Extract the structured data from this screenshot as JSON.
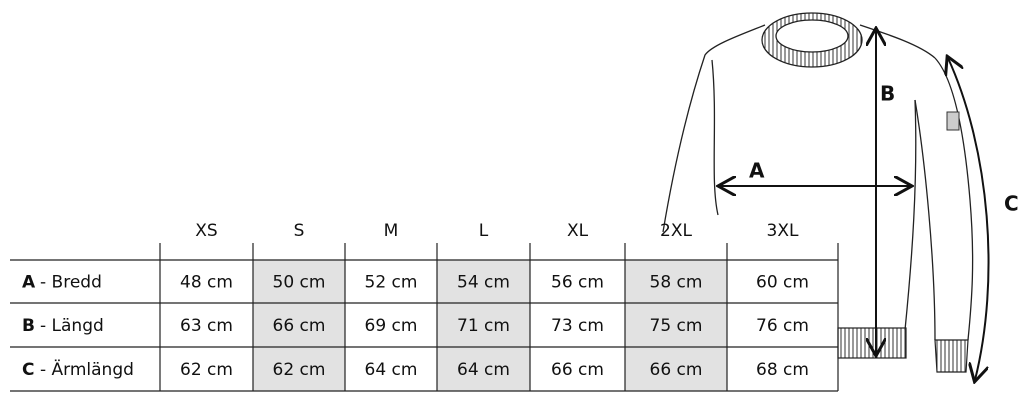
{
  "table": {
    "header": [
      "XS",
      "S",
      "M",
      "L",
      "XL",
      "2XL",
      "3XL"
    ],
    "rows": [
      {
        "letter": "A",
        "name": "- Bredd",
        "cells": [
          "48 cm",
          "50 cm",
          "52 cm",
          "54 cm",
          "56 cm",
          "58 cm",
          "60 cm"
        ]
      },
      {
        "letter": "B",
        "name": "- Längd",
        "cells": [
          "63 cm",
          "66 cm",
          "69 cm",
          "71 cm",
          "73 cm",
          "75 cm",
          "76 cm"
        ]
      },
      {
        "letter": "C",
        "name": "- Ärmlängd",
        "cells": [
          "62 cm",
          "62 cm",
          "64 cm",
          "64 cm",
          "66 cm",
          "66 cm",
          "68 cm"
        ]
      }
    ]
  },
  "diagram": {
    "labels": [
      "A",
      "B",
      "C"
    ]
  }
}
